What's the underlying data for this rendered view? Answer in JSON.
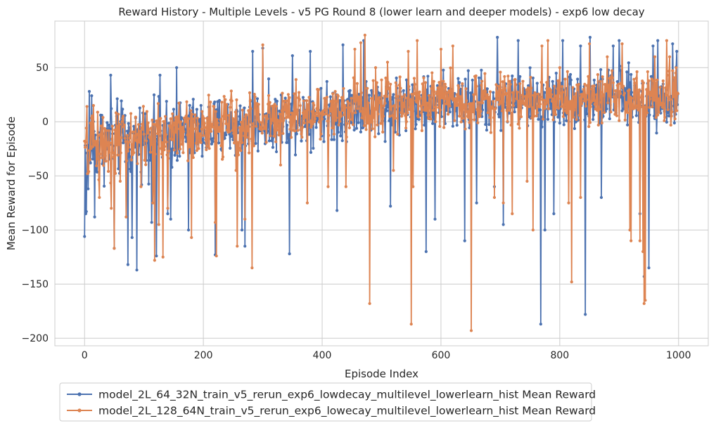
{
  "chart_data": {
    "type": "line",
    "title": "Reward History - Multiple Levels - v5 PG Round 8 (lower learn and deeper models) - exp6 low decay",
    "xlabel": "Episode Index",
    "ylabel": "Mean Reward for Episode",
    "xlim": [
      -50,
      1050
    ],
    "ylim": [
      -207,
      93
    ],
    "xticks": [
      0,
      200,
      400,
      600,
      800,
      1000
    ],
    "yticks": [
      -200,
      -150,
      -100,
      -50,
      0,
      50
    ],
    "xtick_labels": [
      "0",
      "200",
      "400",
      "600",
      "800",
      "1000"
    ],
    "ytick_labels": [
      "−200",
      "−150",
      "−100",
      "−50",
      "0",
      "50"
    ],
    "grid": true,
    "legend_position": "below-left",
    "colors": {
      "series_1": "#4c72b0",
      "series_2": "#dd8452"
    },
    "series": [
      {
        "name": "model_2L_64_32N_train_v5_rerun_exp6_lowdecay_multilevel_lowerlearn_hist Mean Reward",
        "episodes": 1000,
        "trend": [
          [
            0,
            -20
          ],
          [
            100,
            -15
          ],
          [
            200,
            -8
          ],
          [
            300,
            0
          ],
          [
            400,
            8
          ],
          [
            500,
            15
          ],
          [
            600,
            18
          ],
          [
            700,
            20
          ],
          [
            800,
            20
          ],
          [
            900,
            22
          ],
          [
            1000,
            20
          ]
        ],
        "spread": [
          [
            0,
            55
          ],
          [
            150,
            45
          ],
          [
            300,
            40
          ],
          [
            500,
            38
          ],
          [
            700,
            38
          ],
          [
            1000,
            38
          ]
        ],
        "extremes": [
          [
            0,
            -106
          ],
          [
            2,
            -85
          ],
          [
            3,
            -83
          ],
          [
            6,
            -62
          ],
          [
            8,
            28
          ],
          [
            12,
            24
          ],
          [
            17,
            -88
          ],
          [
            44,
            43
          ],
          [
            50,
            -117
          ],
          [
            73,
            -132
          ],
          [
            80,
            -107
          ],
          [
            88,
            -137
          ],
          [
            113,
            -93
          ],
          [
            121,
            -124
          ],
          [
            127,
            43
          ],
          [
            140,
            -85
          ],
          [
            145,
            -90
          ],
          [
            155,
            50
          ],
          [
            175,
            -100
          ],
          [
            220,
            -123
          ],
          [
            265,
            -100
          ],
          [
            270,
            -115
          ],
          [
            283,
            65
          ],
          [
            300,
            68
          ],
          [
            345,
            -122
          ],
          [
            350,
            61
          ],
          [
            380,
            65
          ],
          [
            425,
            -82
          ],
          [
            435,
            71
          ],
          [
            470,
            75
          ],
          [
            515,
            -78
          ],
          [
            575,
            -120
          ],
          [
            590,
            -90
          ],
          [
            640,
            -110
          ],
          [
            660,
            -75
          ],
          [
            690,
            -60
          ],
          [
            695,
            78
          ],
          [
            705,
            -95
          ],
          [
            730,
            75
          ],
          [
            768,
            -187
          ],
          [
            775,
            -100
          ],
          [
            790,
            -85
          ],
          [
            805,
            75
          ],
          [
            835,
            70
          ],
          [
            843,
            -178
          ],
          [
            851,
            78
          ],
          [
            870,
            -70
          ],
          [
            890,
            70
          ],
          [
            900,
            75
          ],
          [
            935,
            -85
          ],
          [
            942,
            -143
          ],
          [
            950,
            -135
          ],
          [
            957,
            70
          ],
          [
            965,
            75
          ],
          [
            990,
            72
          ],
          [
            997,
            65
          ]
        ]
      },
      {
        "name": "model_2L_128_64N_train_v5_rerun_exp6_lowecay_multilevel_lowerlearn_hist Mean Reward",
        "episodes": 1000,
        "trend": [
          [
            0,
            -22
          ],
          [
            100,
            -14
          ],
          [
            200,
            -6
          ],
          [
            300,
            2
          ],
          [
            400,
            10
          ],
          [
            500,
            16
          ],
          [
            600,
            20
          ],
          [
            700,
            22
          ],
          [
            800,
            22
          ],
          [
            900,
            24
          ],
          [
            1000,
            22
          ]
        ],
        "spread": [
          [
            0,
            50
          ],
          [
            150,
            42
          ],
          [
            300,
            38
          ],
          [
            500,
            36
          ],
          [
            700,
            36
          ],
          [
            1000,
            36
          ]
        ],
        "extremes": [
          [
            0,
            -18
          ],
          [
            5,
            -48
          ],
          [
            15,
            15
          ],
          [
            25,
            -70
          ],
          [
            45,
            -80
          ],
          [
            50,
            -117
          ],
          [
            60,
            -55
          ],
          [
            70,
            -88
          ],
          [
            95,
            -60
          ],
          [
            115,
            -75
          ],
          [
            118,
            -128
          ],
          [
            125,
            -95
          ],
          [
            132,
            -125
          ],
          [
            140,
            -80
          ],
          [
            180,
            -107
          ],
          [
            220,
            -93
          ],
          [
            222,
            -124
          ],
          [
            255,
            -45
          ],
          [
            257,
            -115
          ],
          [
            270,
            -90
          ],
          [
            282,
            -135
          ],
          [
            300,
            71
          ],
          [
            330,
            -40
          ],
          [
            375,
            -75
          ],
          [
            410,
            -60
          ],
          [
            440,
            -60
          ],
          [
            455,
            67
          ],
          [
            465,
            73
          ],
          [
            472,
            80
          ],
          [
            480,
            -168
          ],
          [
            490,
            50
          ],
          [
            510,
            55
          ],
          [
            520,
            -45
          ],
          [
            545,
            65
          ],
          [
            550,
            -187
          ],
          [
            553,
            -60
          ],
          [
            560,
            75
          ],
          [
            600,
            67
          ],
          [
            620,
            70
          ],
          [
            651,
            -193
          ],
          [
            690,
            -70
          ],
          [
            705,
            -75
          ],
          [
            720,
            -85
          ],
          [
            745,
            -55
          ],
          [
            755,
            -100
          ],
          [
            770,
            70
          ],
          [
            780,
            75
          ],
          [
            800,
            50
          ],
          [
            815,
            -75
          ],
          [
            820,
            -148
          ],
          [
            835,
            -70
          ],
          [
            850,
            72
          ],
          [
            880,
            60
          ],
          [
            905,
            72
          ],
          [
            918,
            -100
          ],
          [
            920,
            -110
          ],
          [
            935,
            -110
          ],
          [
            940,
            -120
          ],
          [
            942,
            -168
          ],
          [
            944,
            -165
          ],
          [
            960,
            60
          ],
          [
            980,
            75
          ],
          [
            985,
            60
          ],
          [
            995,
            45
          ],
          [
            1000,
            13
          ]
        ]
      }
    ]
  }
}
